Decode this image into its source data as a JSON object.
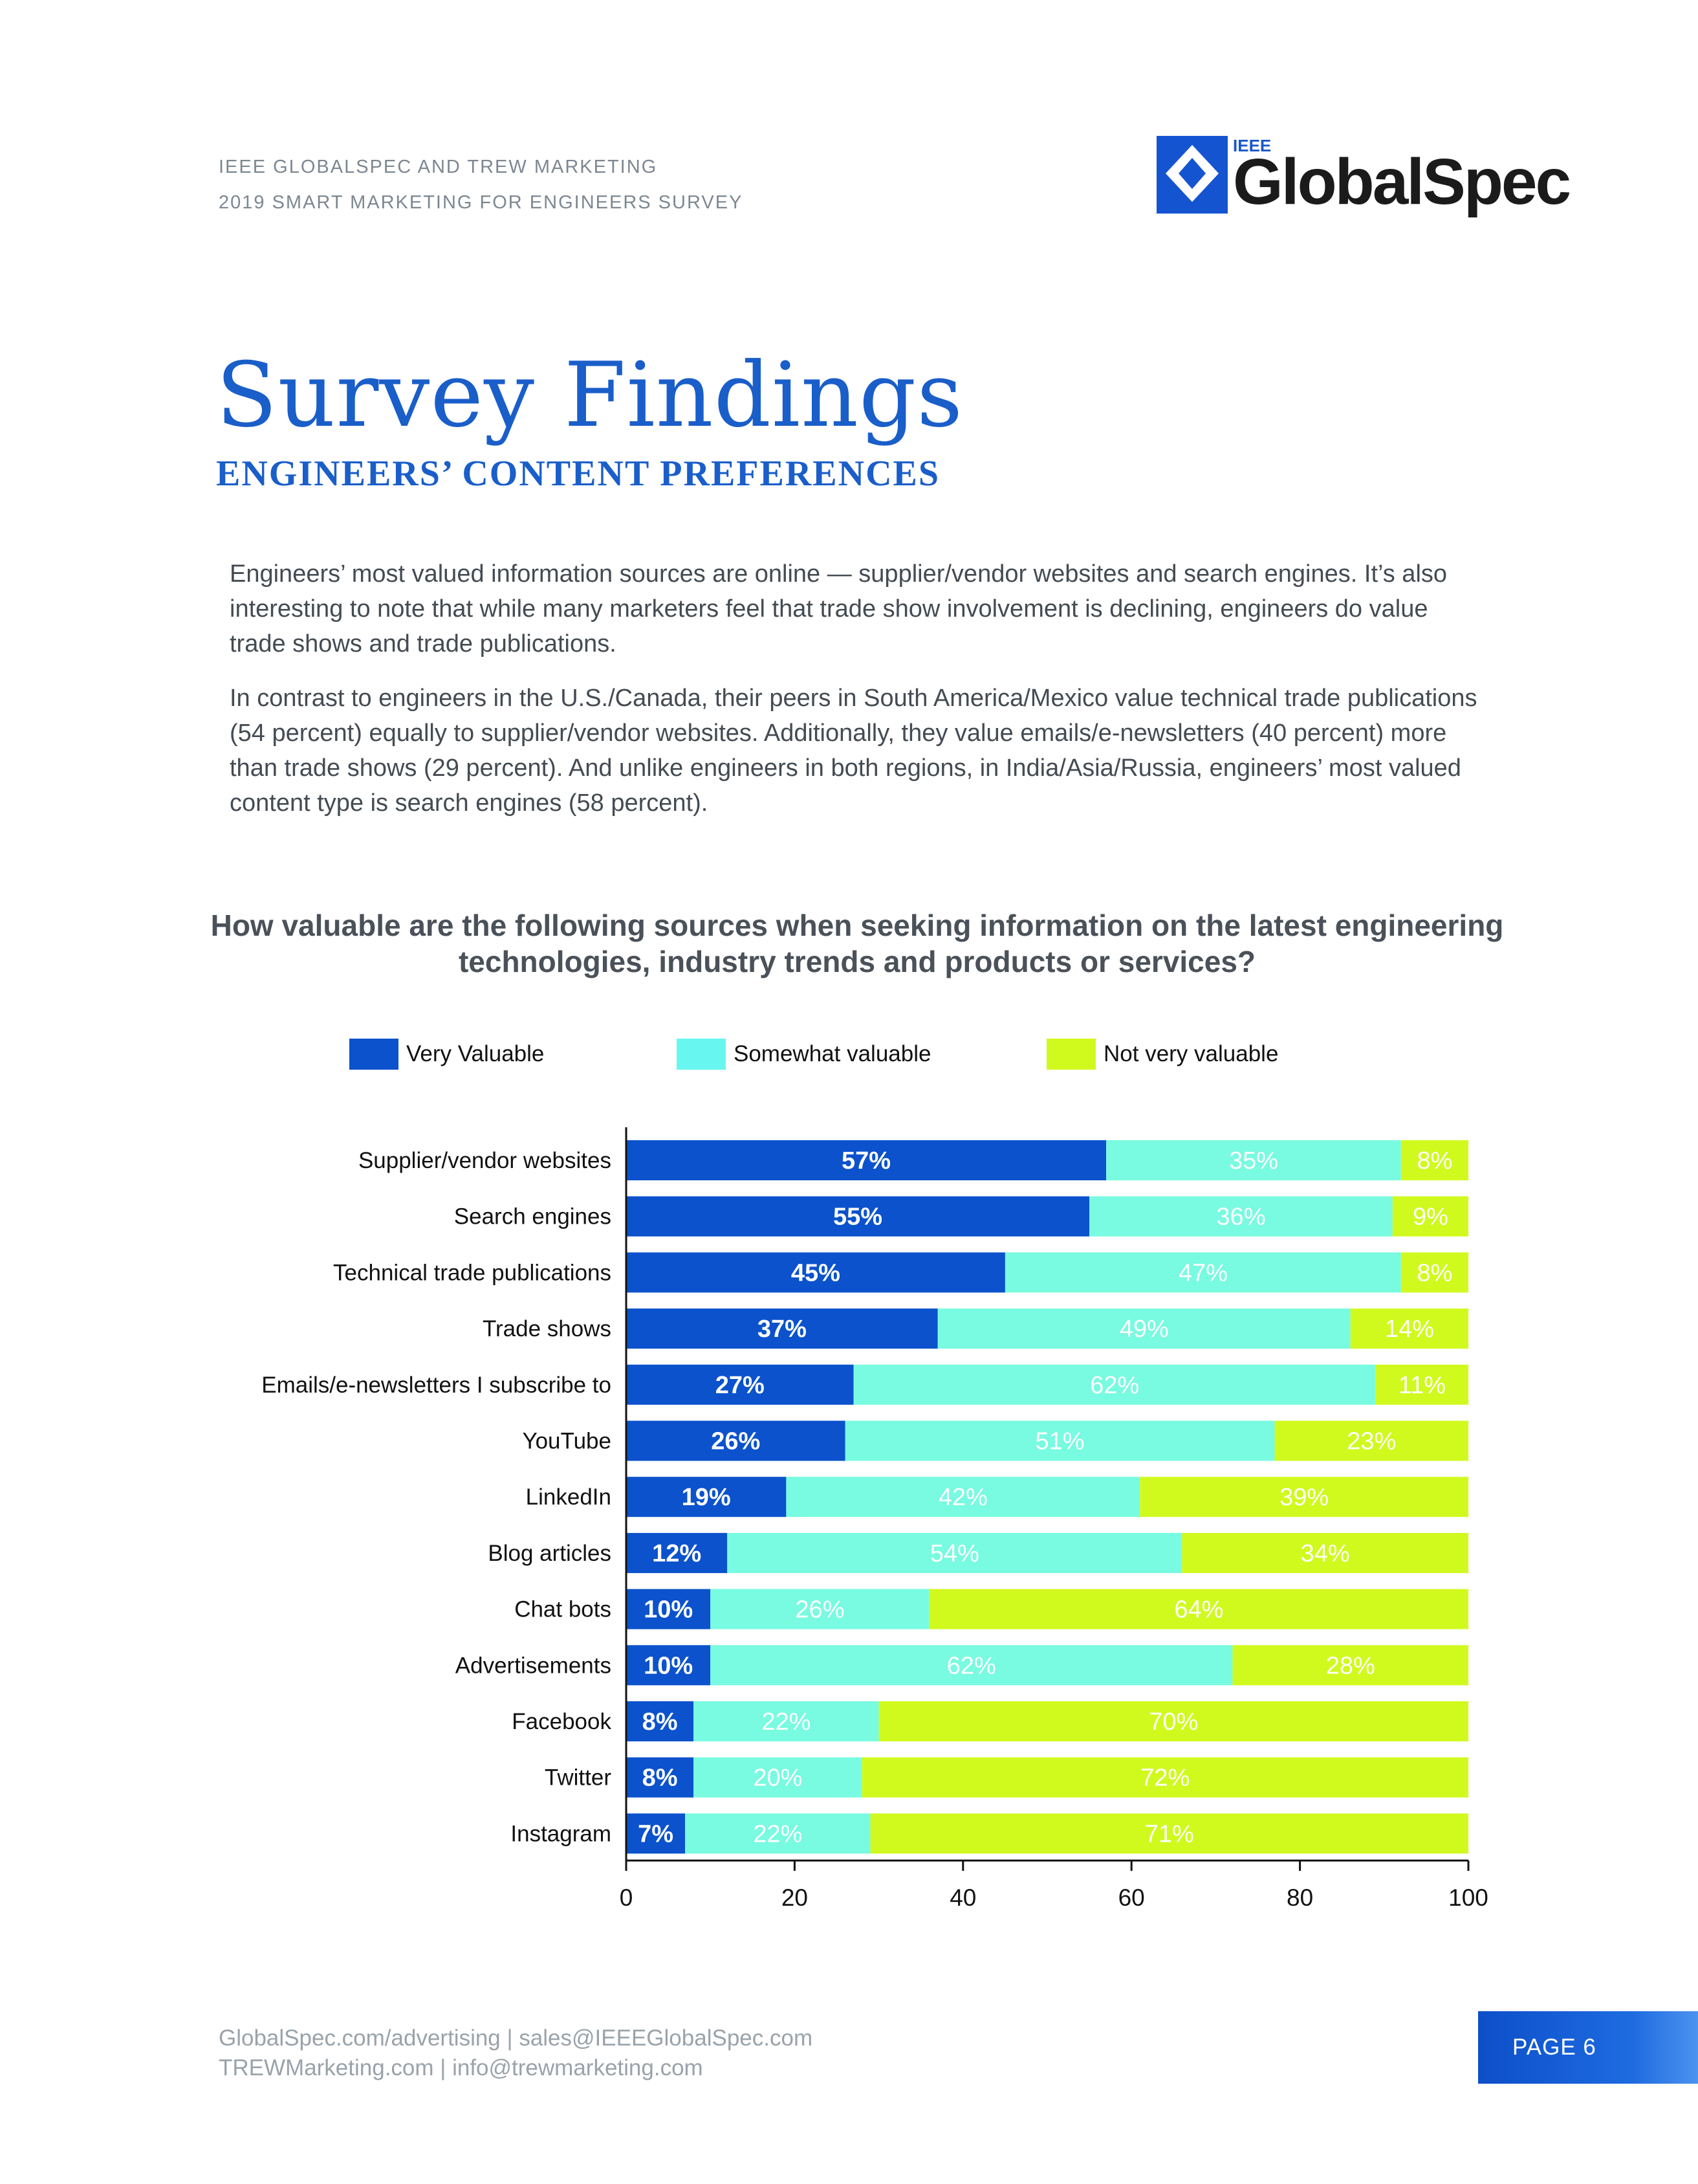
{
  "header": {
    "line1": "IEEE GLOBALSPEC AND TREW MARKETING",
    "line2": "2019 SMART MARKETING FOR ENGINEERS SURVEY",
    "logo_small": "IEEE",
    "logo_main": "GlobalSpec"
  },
  "title": "Survey Findings",
  "subtitle": "ENGINEERS’ CONTENT PREFERENCES",
  "paragraphs": [
    "Engineers’ most valued information sources are online — supplier/vendor websites and search engines. It’s also interesting to note that while many marketers feel that trade show involvement is declining, engineers do value trade shows and trade publications.",
    "In contrast to engineers in the U.S./Canada, their peers in South America/Mexico value technical trade publications (54 percent) equally to supplier/vendor websites. Additionally, they value emails/e-newsletters (40 percent) more than trade shows (29 percent). And unlike engineers in both regions, in India/Asia/Russia, engineers’ most valued content type is search engines (58 percent)."
  ],
  "chart_data": {
    "type": "bar",
    "orientation": "horizontal",
    "stacked": true,
    "title": "How valuable are the following sources when seeking information on the latest engineering technologies, industry trends and products or services?",
    "categories": [
      "Supplier/vendor websites",
      "Search engines",
      "Technical trade publications",
      "Trade shows",
      "Emails/e-newsletters I subscribe to",
      "YouTube",
      "LinkedIn",
      "Blog articles",
      "Chat bots",
      "Advertisements",
      "Facebook",
      "Twitter",
      "Instagram"
    ],
    "series": [
      {
        "name": "Very Valuable",
        "color": "#0b52cc",
        "values": [
          57,
          55,
          45,
          37,
          27,
          26,
          19,
          12,
          10,
          10,
          8,
          8,
          7
        ]
      },
      {
        "name": "Somewhat valuable",
        "color": "#78fbe0",
        "values": [
          35,
          36,
          47,
          49,
          62,
          51,
          42,
          54,
          26,
          62,
          22,
          20,
          22
        ]
      },
      {
        "name": "Not very valuable",
        "color": "#d0fa1e",
        "values": [
          8,
          9,
          8,
          14,
          11,
          23,
          39,
          34,
          64,
          28,
          70,
          72,
          71
        ]
      }
    ],
    "xlim": [
      0,
      100
    ],
    "xticks": [
      "0",
      "20",
      "40",
      "60",
      "80",
      "100"
    ],
    "legend_position": "top"
  },
  "footer": {
    "line1": "GlobalSpec.com/advertising  |  sales@IEEEGlobalSpec.com",
    "line2": "TREWMarketing.com  |  info@trewmarketing.com",
    "page": "PAGE 6"
  }
}
